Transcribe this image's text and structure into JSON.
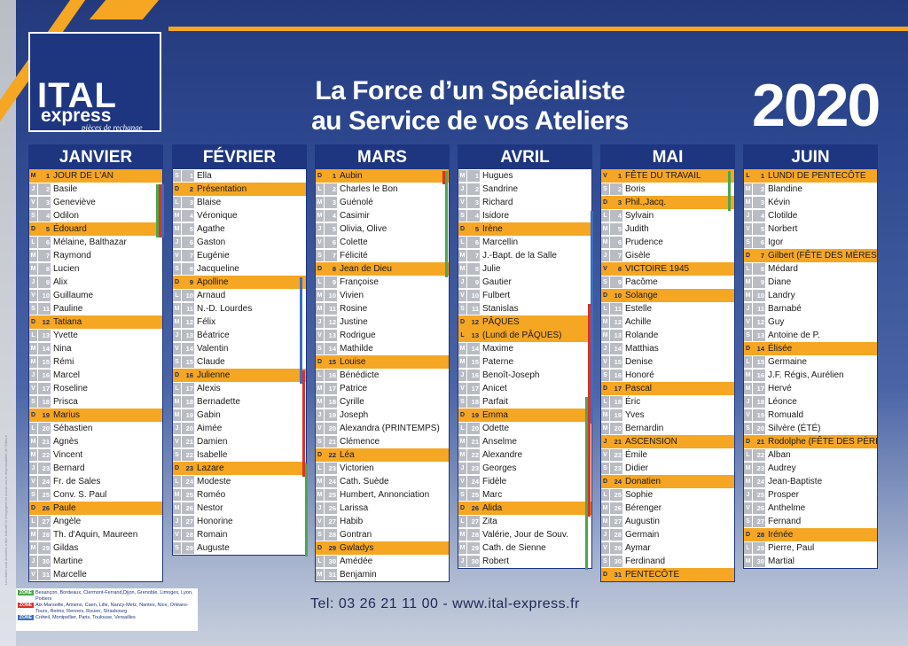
{
  "header": {
    "logo_main": "ITAL",
    "logo_express": "express",
    "logo_sub": "pièces de rechange",
    "headline_1": "La Force d’un Spécialiste",
    "headline_2": "au Service de vos Ateliers",
    "year": "2020"
  },
  "colors": {
    "brand_blue": "#1e3580",
    "accent_orange": "#f5a623",
    "zone_a": "#4aa84a",
    "zone_b": "#d9322a",
    "zone_c": "#3a6fc4"
  },
  "months": [
    {
      "name": "JANVIER",
      "days": [
        [
          "M",
          "1",
          "JOUR DE L'AN",
          1
        ],
        [
          "J",
          "2",
          "Basile",
          0
        ],
        [
          "V",
          "3",
          "Geneviève",
          0
        ],
        [
          "S",
          "4",
          "Odilon",
          0
        ],
        [
          "D",
          "5",
          "Édouard",
          1
        ],
        [
          "L",
          "6",
          "Mélaine, Balthazar",
          0
        ],
        [
          "M",
          "7",
          "Raymond",
          0
        ],
        [
          "M",
          "8",
          "Lucien",
          0
        ],
        [
          "J",
          "9",
          "Alix",
          0
        ],
        [
          "V",
          "10",
          "Guillaume",
          0
        ],
        [
          "S",
          "11",
          "Pauline",
          0
        ],
        [
          "D",
          "12",
          "Tatiana",
          1
        ],
        [
          "L",
          "13",
          "Yvette",
          0
        ],
        [
          "M",
          "14",
          "Nina",
          0
        ],
        [
          "M",
          "15",
          "Rémi",
          0
        ],
        [
          "J",
          "16",
          "Marcel",
          0
        ],
        [
          "V",
          "17",
          "Roseline",
          0
        ],
        [
          "S",
          "18",
          "Prisca",
          0
        ],
        [
          "D",
          "19",
          "Marius",
          1
        ],
        [
          "L",
          "20",
          "Sébastien",
          0
        ],
        [
          "M",
          "21",
          "Agnès",
          0
        ],
        [
          "M",
          "22",
          "Vincent",
          0
        ],
        [
          "J",
          "23",
          "Bernard",
          0
        ],
        [
          "V",
          "24",
          "Fr. de Sales",
          0
        ],
        [
          "S",
          "25",
          "Conv. S. Paul",
          0
        ],
        [
          "D",
          "26",
          "Paule",
          1
        ],
        [
          "L",
          "27",
          "Angèle",
          0
        ],
        [
          "M",
          "28",
          "Th. d'Aquin, Maureen",
          0
        ],
        [
          "M",
          "29",
          "Gildas",
          0
        ],
        [
          "J",
          "30",
          "Martine",
          0
        ],
        [
          "V",
          "31",
          "Marcelle",
          0
        ]
      ]
    },
    {
      "name": "FÉVRIER",
      "days": [
        [
          "S",
          "1",
          "Ella",
          0
        ],
        [
          "D",
          "2",
          "Présentation",
          1
        ],
        [
          "L",
          "3",
          "Blaise",
          0
        ],
        [
          "M",
          "4",
          "Véronique",
          0
        ],
        [
          "M",
          "5",
          "Agathe",
          0
        ],
        [
          "J",
          "6",
          "Gaston",
          0
        ],
        [
          "V",
          "7",
          "Eugénie",
          0
        ],
        [
          "S",
          "8",
          "Jacqueline",
          0
        ],
        [
          "D",
          "9",
          "Apolline",
          1
        ],
        [
          "L",
          "10",
          "Arnaud",
          0
        ],
        [
          "M",
          "11",
          "N.-D. Lourdes",
          0
        ],
        [
          "M",
          "12",
          "Félix",
          0
        ],
        [
          "J",
          "13",
          "Béatrice",
          0
        ],
        [
          "V",
          "14",
          "Valentin",
          0
        ],
        [
          "S",
          "15",
          "Claude",
          0
        ],
        [
          "D",
          "16",
          "Julienne",
          1
        ],
        [
          "L",
          "17",
          "Alexis",
          0
        ],
        [
          "M",
          "18",
          "Bernadette",
          0
        ],
        [
          "M",
          "19",
          "Gabin",
          0
        ],
        [
          "J",
          "20",
          "Aimée",
          0
        ],
        [
          "V",
          "21",
          "Damien",
          0
        ],
        [
          "S",
          "22",
          "Isabelle",
          0
        ],
        [
          "D",
          "23",
          "Lazare",
          1
        ],
        [
          "L",
          "24",
          "Modeste",
          0
        ],
        [
          "M",
          "25",
          "Roméo",
          0
        ],
        [
          "M",
          "26",
          "Nestor",
          0
        ],
        [
          "J",
          "27",
          "Honorine",
          0
        ],
        [
          "V",
          "28",
          "Romain",
          0
        ],
        [
          "S",
          "29",
          "Auguste",
          0
        ]
      ]
    },
    {
      "name": "MARS",
      "days": [
        [
          "D",
          "1",
          "Aubin",
          1
        ],
        [
          "L",
          "2",
          "Charles le Bon",
          0
        ],
        [
          "M",
          "3",
          "Guénolé",
          0
        ],
        [
          "M",
          "4",
          "Casimir",
          0
        ],
        [
          "J",
          "5",
          "Olivia, Olive",
          0
        ],
        [
          "V",
          "6",
          "Colette",
          0
        ],
        [
          "S",
          "7",
          "Félicité",
          0
        ],
        [
          "D",
          "8",
          "Jean de Dieu",
          1
        ],
        [
          "L",
          "9",
          "Françoise",
          0
        ],
        [
          "M",
          "10",
          "Vivien",
          0
        ],
        [
          "M",
          "11",
          "Rosine",
          0
        ],
        [
          "J",
          "12",
          "Justine",
          0
        ],
        [
          "V",
          "13",
          "Rodrigue",
          0
        ],
        [
          "S",
          "14",
          "Mathilde",
          0
        ],
        [
          "D",
          "15",
          "Louise",
          1
        ],
        [
          "L",
          "16",
          "Bénédicte",
          0
        ],
        [
          "M",
          "17",
          "Patrice",
          0
        ],
        [
          "M",
          "18",
          "Cyrille",
          0
        ],
        [
          "J",
          "19",
          "Joseph",
          0
        ],
        [
          "V",
          "20",
          "Alexandra (PRINTEMPS)",
          0
        ],
        [
          "S",
          "21",
          "Clémence",
          0
        ],
        [
          "D",
          "22",
          "Léa",
          1
        ],
        [
          "L",
          "23",
          "Victorien",
          0
        ],
        [
          "M",
          "24",
          "Cath. Suède",
          0
        ],
        [
          "M",
          "25",
          "Humbert, Annonciation",
          0
        ],
        [
          "J",
          "26",
          "Larissa",
          0
        ],
        [
          "V",
          "27",
          "Habib",
          0
        ],
        [
          "S",
          "28",
          "Gontran",
          0
        ],
        [
          "D",
          "29",
          "Gwladys",
          1
        ],
        [
          "L",
          "30",
          "Amédée",
          0
        ],
        [
          "M",
          "31",
          "Benjamin",
          0
        ]
      ]
    },
    {
      "name": "AVRIL",
      "days": [
        [
          "M",
          "1",
          "Hugues",
          0
        ],
        [
          "J",
          "2",
          "Sandrine",
          0
        ],
        [
          "V",
          "3",
          "Richard",
          0
        ],
        [
          "S",
          "4",
          "Isidore",
          0
        ],
        [
          "D",
          "5",
          "Irène",
          1
        ],
        [
          "L",
          "6",
          "Marcellin",
          0
        ],
        [
          "M",
          "7",
          "J.-Bapt. de la Salle",
          0
        ],
        [
          "M",
          "8",
          "Julie",
          0
        ],
        [
          "J",
          "9",
          "Gautier",
          0
        ],
        [
          "V",
          "10",
          "Fulbert",
          0
        ],
        [
          "S",
          "11",
          "Stanislas",
          0
        ],
        [
          "D",
          "12",
          "PÂQUES",
          1
        ],
        [
          "L",
          "13",
          "(Lundi de PÂQUES)",
          1
        ],
        [
          "M",
          "14",
          "Maxime",
          0
        ],
        [
          "M",
          "15",
          "Paterne",
          0
        ],
        [
          "J",
          "16",
          "Benoît-Joseph",
          0
        ],
        [
          "V",
          "17",
          "Anicet",
          0
        ],
        [
          "S",
          "18",
          "Parfait",
          0
        ],
        [
          "D",
          "19",
          "Emma",
          1
        ],
        [
          "L",
          "20",
          "Odette",
          0
        ],
        [
          "M",
          "21",
          "Anselme",
          0
        ],
        [
          "M",
          "22",
          "Alexandre",
          0
        ],
        [
          "J",
          "23",
          "Georges",
          0
        ],
        [
          "V",
          "24",
          "Fidèle",
          0
        ],
        [
          "S",
          "25",
          "Marc",
          0
        ],
        [
          "D",
          "26",
          "Alida",
          1
        ],
        [
          "L",
          "27",
          "Zita",
          0
        ],
        [
          "M",
          "28",
          "Valérie, Jour de Souv.",
          0
        ],
        [
          "M",
          "29",
          "Cath. de Sienne",
          0
        ],
        [
          "J",
          "30",
          "Robert",
          0
        ]
      ]
    },
    {
      "name": "MAI",
      "days": [
        [
          "V",
          "1",
          "FÊTE DU TRAVAIL",
          1
        ],
        [
          "S",
          "2",
          "Boris",
          0
        ],
        [
          "D",
          "3",
          "Phil.,Jacq.",
          1
        ],
        [
          "L",
          "4",
          "Sylvain",
          0
        ],
        [
          "M",
          "5",
          "Judith",
          0
        ],
        [
          "M",
          "6",
          "Prudence",
          0
        ],
        [
          "J",
          "7",
          "Gisèle",
          0
        ],
        [
          "V",
          "8",
          "VICTOIRE 1945",
          1
        ],
        [
          "S",
          "9",
          "Pacôme",
          0
        ],
        [
          "D",
          "10",
          "Solange",
          1
        ],
        [
          "L",
          "11",
          "Estelle",
          0
        ],
        [
          "M",
          "12",
          "Achille",
          0
        ],
        [
          "M",
          "13",
          "Rolande",
          0
        ],
        [
          "J",
          "14",
          "Matthias",
          0
        ],
        [
          "V",
          "15",
          "Denise",
          0
        ],
        [
          "S",
          "16",
          "Honoré",
          0
        ],
        [
          "D",
          "17",
          "Pascal",
          1
        ],
        [
          "L",
          "18",
          "Éric",
          0
        ],
        [
          "M",
          "19",
          "Yves",
          0
        ],
        [
          "M",
          "20",
          "Bernardin",
          0
        ],
        [
          "J",
          "21",
          "ASCENSION",
          1
        ],
        [
          "V",
          "22",
          "Émile",
          0
        ],
        [
          "S",
          "23",
          "Didier",
          0
        ],
        [
          "D",
          "24",
          "Donatien",
          1
        ],
        [
          "L",
          "25",
          "Sophie",
          0
        ],
        [
          "M",
          "26",
          "Bérenger",
          0
        ],
        [
          "M",
          "27",
          "Augustin",
          0
        ],
        [
          "J",
          "28",
          "Germain",
          0
        ],
        [
          "V",
          "29",
          "Aymar",
          0
        ],
        [
          "S",
          "30",
          "Ferdinand",
          0
        ],
        [
          "D",
          "31",
          "PENTECÔTE",
          1
        ]
      ]
    },
    {
      "name": "JUIN",
      "days": [
        [
          "L",
          "1",
          "LUNDI DE PENTECÔTE",
          1
        ],
        [
          "M",
          "2",
          "Blandine",
          0
        ],
        [
          "M",
          "3",
          "Kévin",
          0
        ],
        [
          "J",
          "4",
          "Clotilde",
          0
        ],
        [
          "V",
          "5",
          "Norbert",
          0
        ],
        [
          "S",
          "6",
          "Igor",
          0
        ],
        [
          "D",
          "7",
          "Gilbert (FÊTE DES MÈRES)",
          1
        ],
        [
          "L",
          "8",
          "Médard",
          0
        ],
        [
          "M",
          "9",
          "Diane",
          0
        ],
        [
          "M",
          "10",
          "Landry",
          0
        ],
        [
          "J",
          "11",
          "Barnabé",
          0
        ],
        [
          "V",
          "12",
          "Guy",
          0
        ],
        [
          "S",
          "13",
          "Antoine de P.",
          0
        ],
        [
          "D",
          "14",
          "Élisée",
          1
        ],
        [
          "L",
          "15",
          "Germaine",
          0
        ],
        [
          "M",
          "16",
          "J.F. Régis, Aurélien",
          0
        ],
        [
          "M",
          "17",
          "Hervé",
          0
        ],
        [
          "J",
          "18",
          "Léonce",
          0
        ],
        [
          "V",
          "19",
          "Romuald",
          0
        ],
        [
          "S",
          "20",
          "Silvère (ÉTÉ)",
          0
        ],
        [
          "D",
          "21",
          "Rodolphe (FÊTE DES PÈRES)",
          1
        ],
        [
          "L",
          "22",
          "Alban",
          0
        ],
        [
          "M",
          "23",
          "Audrey",
          0
        ],
        [
          "M",
          "24",
          "Jean-Baptiste",
          0
        ],
        [
          "J",
          "25",
          "Prosper",
          0
        ],
        [
          "V",
          "26",
          "Anthelme",
          0
        ],
        [
          "S",
          "27",
          "Fernand",
          0
        ],
        [
          "D",
          "28",
          "Irénée",
          1
        ],
        [
          "L",
          "29",
          "Pierre, Paul",
          0
        ],
        [
          "M",
          "30",
          "Martial",
          0
        ]
      ]
    }
  ],
  "legend": {
    "zone_a_tag": "ZONE A",
    "zone_a_text": "Besançon, Bordeaux, Clermont-Ferrand,Dijon, Grenoble, Limoges, Lyon, Poitiers",
    "zone_b_tag": "ZONE B",
    "zone_b_text": "Aix-Marseille, Amiens, Caen, Lille, Nancy-Metz, Nantes, Nice, Orléans-Tours, Reims, Rennes, Rouen, Strasbourg",
    "zone_c_tag": "ZONE C",
    "zone_c_text": "Créteil, Montpellier, Paris, Toulouse, Versailles"
  },
  "side_note": "Les dates sont données à titre indicatif et n'engagent en aucun cas la responsabilité de l'éditeur",
  "footer": {
    "contact": "Tel: 03 26 21 11 00   -   www.ital-express.fr"
  }
}
